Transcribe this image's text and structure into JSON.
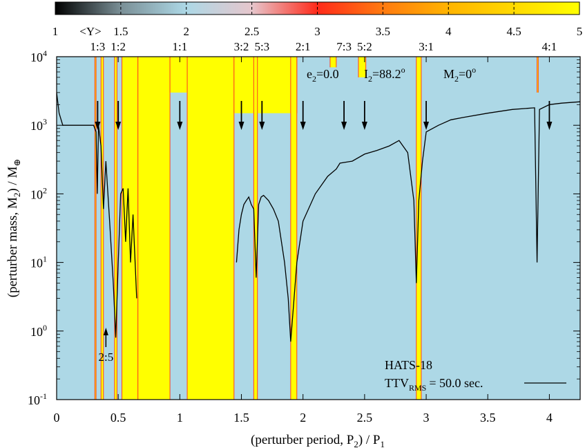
{
  "chart_data": {
    "type": "heatmap",
    "title": "",
    "system": "HATS-18",
    "xlabel": "(perturber period, P",
    "xlabel_sub": "2",
    "xlabel_tail": ") / P",
    "xlabel_sub2": "1",
    "ylabel_main": "(perturber mass, M",
    "ylabel_sub": "2",
    "ylabel_tail": ") / M",
    "ylabel_unit_symbol": "⊕",
    "x_axis": {
      "min": 0,
      "max": 4.25,
      "ticks": [
        0,
        0.5,
        1,
        1.5,
        2,
        2.5,
        3,
        3.5,
        4
      ],
      "tick_labels": [
        "0",
        "0.5",
        "1",
        "1.5",
        "2",
        "2.5",
        "3",
        "3.5",
        "4"
      ]
    },
    "y_axis": {
      "scale": "log",
      "min": 0.1,
      "max": 10000,
      "ticks": [
        0.1,
        1,
        10,
        100,
        1000,
        10000
      ],
      "tick_labels": [
        {
          "base": "10",
          "exp": "-1"
        },
        {
          "base": "10",
          "exp": "0"
        },
        {
          "base": "10",
          "exp": "1"
        },
        {
          "base": "10",
          "exp": "2"
        },
        {
          "base": "10",
          "exp": "3"
        },
        {
          "base": "10",
          "exp": "4"
        }
      ]
    },
    "colorbar": {
      "label": "<Y>",
      "min": 1,
      "max": 5,
      "ticks": [
        1,
        1.5,
        2,
        2.5,
        3,
        3.5,
        4,
        4.5,
        5
      ],
      "tick_labels": [
        "1",
        "1.5",
        "2",
        "2.5",
        "3",
        "3.5",
        "4",
        "4.5",
        "5"
      ],
      "colors": [
        "#000000",
        "#add8e6",
        "#ff0000",
        "#ffff00"
      ]
    },
    "background_color": "#add8e6",
    "chaotic_color": "#ffff00",
    "params": [
      {
        "name": "e",
        "sub": "2",
        "value": "=0.0"
      },
      {
        "name": "I",
        "sub": "2",
        "value": "=88.2",
        "sup": "o"
      },
      {
        "name": "M",
        "sub": "2",
        "value": "=0",
        "sup": "o"
      }
    ],
    "resonances": [
      {
        "label": "1:3",
        "x": 0.333
      },
      {
        "label": "1:2",
        "x": 0.5
      },
      {
        "label": "1:1",
        "x": 1.0
      },
      {
        "label": "3:2",
        "x": 1.5
      },
      {
        "label": "5:3",
        "x": 1.667
      },
      {
        "label": "2:1",
        "x": 2.0
      },
      {
        "label": "7:3",
        "x": 2.333
      },
      {
        "label": "5:2",
        "x": 2.5
      },
      {
        "label": "3:1",
        "x": 3.0
      },
      {
        "label": "4:1",
        "x": 4.0
      }
    ],
    "lower_resonance": {
      "label": "2:5",
      "x": 0.4
    },
    "chaotic_regions": [
      {
        "x0": 0.31,
        "x1": 0.32,
        "ytop": 10000
      },
      {
        "x0": 0.36,
        "x1": 0.38,
        "ytop": 10000
      },
      {
        "x0": 0.47,
        "x1": 0.49,
        "ytop": 10000
      },
      {
        "x0": 0.53,
        "x1": 0.66,
        "ytop": 10000
      },
      {
        "x0": 0.66,
        "x1": 0.92,
        "ytop": 10000
      },
      {
        "x0": 1.06,
        "x1": 1.44,
        "ytop": 10000
      },
      {
        "x0": 0.92,
        "x1": 1.06,
        "ytop": 10000,
        "band_above": 3000
      },
      {
        "x0": 1.44,
        "x1": 1.95,
        "ytop": 10000,
        "band_above": 1500
      },
      {
        "x0": 1.6,
        "x1": 1.63,
        "ytop": 10000
      },
      {
        "x0": 1.9,
        "x1": 1.95,
        "ytop": 10000
      },
      {
        "x0": 2.22,
        "x1": 2.27,
        "ytop": 10000,
        "band_above": 7000
      },
      {
        "x0": 2.45,
        "x1": 2.51,
        "ytop": 10000,
        "band_above": 5000
      },
      {
        "x0": 2.92,
        "x1": 2.96,
        "ytop": 10000
      },
      {
        "x0": 3.9,
        "x1": 3.91,
        "ytop": 10000,
        "band_above": 3000
      }
    ],
    "series": [
      {
        "name": "TTV",
        "name_sub": "RMS",
        "value_label": "= 50.0 sec.",
        "x": [
          0.0,
          0.02,
          0.05,
          0.07,
          0.1,
          0.15,
          0.2,
          0.25,
          0.3,
          0.32,
          0.33,
          0.34,
          0.36,
          0.38,
          0.4,
          0.43,
          0.46,
          0.48,
          0.5,
          0.52,
          0.54,
          0.56,
          0.58,
          0.6,
          0.62,
          0.65
        ],
        "y": [
          3000,
          1500,
          1000,
          1000,
          1000,
          1000,
          1000,
          1000,
          1000,
          800,
          100,
          1000,
          500,
          60,
          300,
          40,
          5,
          0.8,
          10,
          100,
          120,
          20,
          120,
          10,
          50,
          3
        ]
      },
      {
        "name": "TTV-right",
        "x": [
          1.46,
          1.48,
          1.5,
          1.52,
          1.54,
          1.56,
          1.58,
          1.6,
          1.62,
          1.64,
          1.66,
          1.68,
          1.72,
          1.76,
          1.8,
          1.85,
          1.88,
          1.9,
          1.92,
          1.95,
          2.0,
          2.1,
          2.2,
          2.27,
          2.3,
          2.4,
          2.5,
          2.6,
          2.7,
          2.78,
          2.85,
          2.9,
          2.92,
          2.94,
          2.97,
          3.0,
          3.1,
          3.2,
          3.3,
          3.5,
          3.7,
          3.88,
          3.9,
          3.92,
          4.0,
          4.1,
          4.25
        ],
        "y": [
          10,
          30,
          50,
          70,
          80,
          90,
          70,
          60,
          6,
          70,
          90,
          95,
          80,
          60,
          40,
          10,
          3,
          0.7,
          2,
          10,
          40,
          100,
          180,
          230,
          280,
          300,
          380,
          430,
          500,
          600,
          400,
          80,
          5,
          80,
          300,
          800,
          1000,
          1200,
          1300,
          1500,
          1700,
          1800,
          10,
          1700,
          2000,
          2100,
          2200
        ]
      }
    ]
  }
}
